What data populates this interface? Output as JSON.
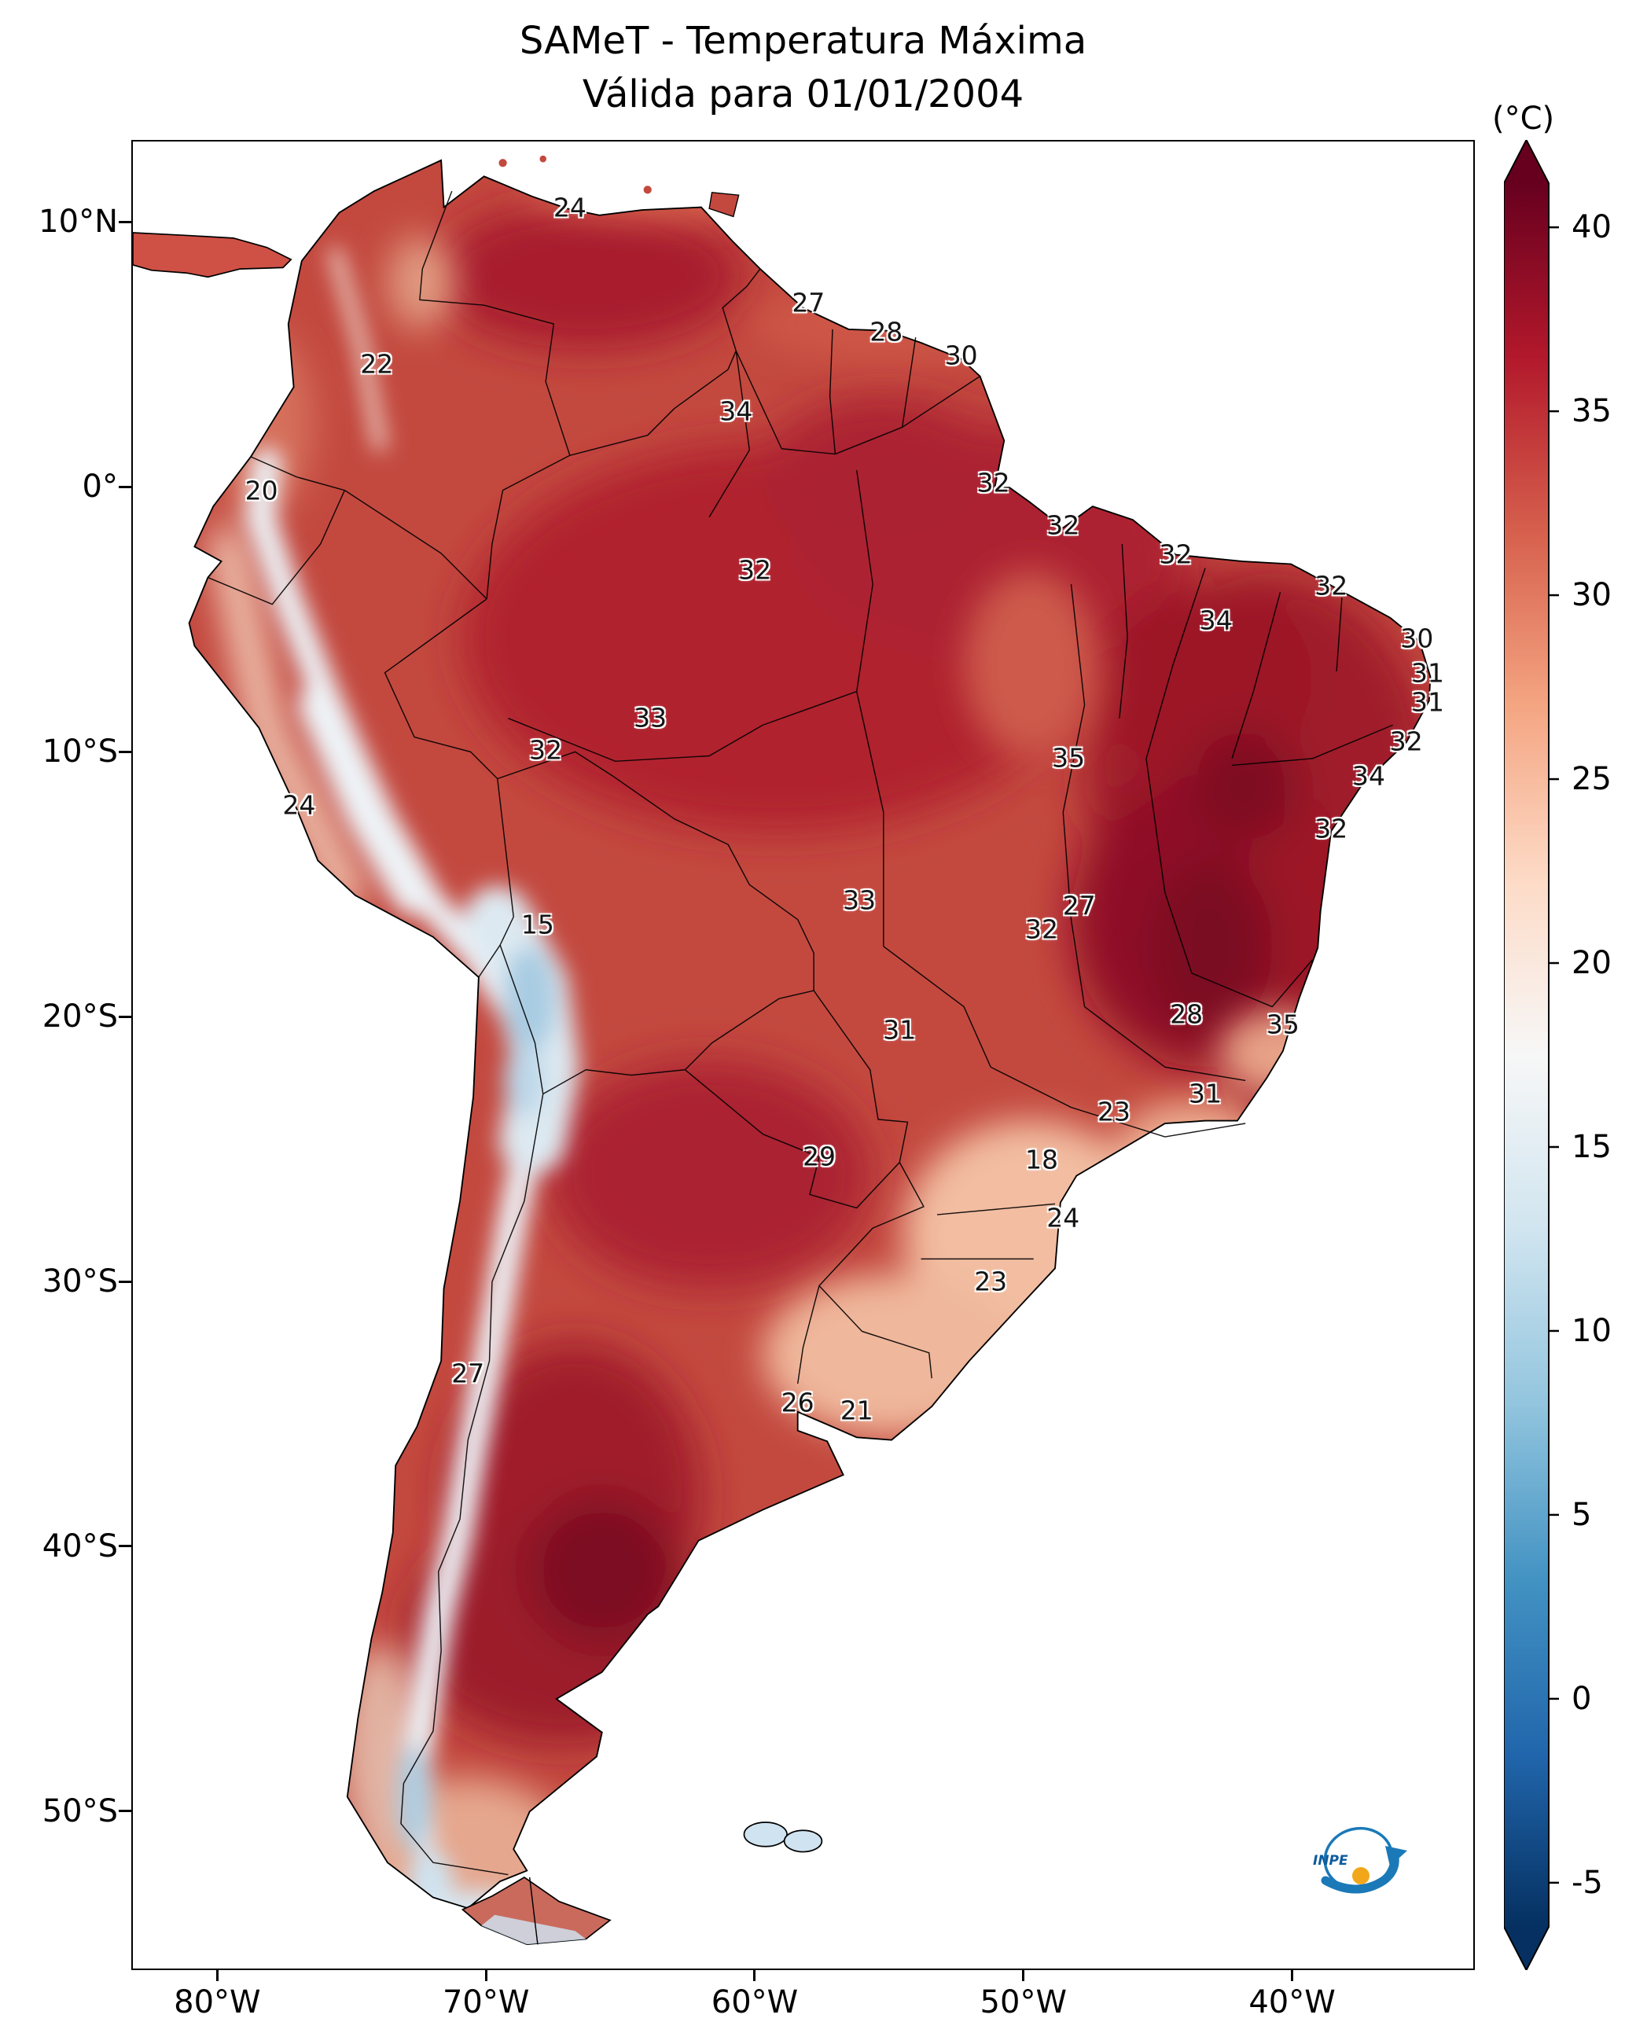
{
  "title": {
    "line1": "SAMeT - Temperatura Máxima",
    "line2": "Válida para 01/01/2004"
  },
  "colorbar": {
    "unit_label": "(°C)",
    "vmax": 41.2,
    "vmin": -6.2,
    "ticks": [
      40,
      35,
      30,
      25,
      20,
      15,
      10,
      5,
      0,
      -5
    ],
    "stops": [
      {
        "value": 41.2,
        "color": "#67001f"
      },
      {
        "value": 36.5,
        "color": "#b2182b"
      },
      {
        "value": 31.7,
        "color": "#d6604d"
      },
      {
        "value": 27.0,
        "color": "#f4a582"
      },
      {
        "value": 22.2,
        "color": "#fddbc7"
      },
      {
        "value": 17.5,
        "color": "#f7f7f7"
      },
      {
        "value": 12.8,
        "color": "#d1e5f0"
      },
      {
        "value": 8.0,
        "color": "#92c5de"
      },
      {
        "value": 3.3,
        "color": "#4393c3"
      },
      {
        "value": -1.5,
        "color": "#2166ac"
      },
      {
        "value": -6.2,
        "color": "#053061"
      }
    ]
  },
  "map": {
    "extent": {
      "lon_min": -83.2,
      "lon_max": -33.2,
      "lat_min": -56.0,
      "lat_max": 13.1
    },
    "lat_ticks": [
      {
        "label": "10°N",
        "value": 10
      },
      {
        "label": "0°",
        "value": 0
      },
      {
        "label": "10°S",
        "value": -10
      },
      {
        "label": "20°S",
        "value": -20
      },
      {
        "label": "30°S",
        "value": -30
      },
      {
        "label": "40°S",
        "value": -40
      },
      {
        "label": "50°S",
        "value": -50
      }
    ],
    "lon_ticks": [
      {
        "label": "80°W",
        "value": -80
      },
      {
        "label": "70°W",
        "value": -70
      },
      {
        "label": "60°W",
        "value": -60
      },
      {
        "label": "50°W",
        "value": -50
      },
      {
        "label": "40°W",
        "value": -40
      }
    ],
    "logo_text": "INPE"
  },
  "chart_data": {
    "type": "heatmap",
    "title": "SAMeT - Temperatura Máxima",
    "subtitle": "Válida para 01/01/2004",
    "units": "°C",
    "value_range": [
      -5,
      40
    ],
    "legend_position": "right",
    "stations": [
      {
        "lon": -66.9,
        "lat": 10.6,
        "value": 24
      },
      {
        "lon": -58.0,
        "lat": 7.0,
        "value": 27
      },
      {
        "lon": -55.1,
        "lat": 5.9,
        "value": 28
      },
      {
        "lon": -52.3,
        "lat": 5.0,
        "value": 30
      },
      {
        "lon": -74.1,
        "lat": 4.7,
        "value": 22
      },
      {
        "lon": -60.7,
        "lat": 2.9,
        "value": 34
      },
      {
        "lon": -78.4,
        "lat": -0.1,
        "value": 20
      },
      {
        "lon": -51.1,
        "lat": 0.2,
        "value": 32
      },
      {
        "lon": -48.5,
        "lat": -1.4,
        "value": 32
      },
      {
        "lon": -60.0,
        "lat": -3.1,
        "value": 32
      },
      {
        "lon": -44.3,
        "lat": -2.5,
        "value": 32
      },
      {
        "lon": -38.5,
        "lat": -3.7,
        "value": 32
      },
      {
        "lon": -42.8,
        "lat": -5.0,
        "value": 34
      },
      {
        "lon": -35.3,
        "lat": -5.7,
        "value": 30
      },
      {
        "lon": -34.9,
        "lat": -7.0,
        "value": 31
      },
      {
        "lon": -34.9,
        "lat": -8.1,
        "value": 31
      },
      {
        "lon": -63.9,
        "lat": -8.7,
        "value": 33
      },
      {
        "lon": -67.8,
        "lat": -9.9,
        "value": 32
      },
      {
        "lon": -35.7,
        "lat": -9.6,
        "value": 32
      },
      {
        "lon": -48.3,
        "lat": -10.2,
        "value": 35
      },
      {
        "lon": -37.1,
        "lat": -10.9,
        "value": 34
      },
      {
        "lon": -77.0,
        "lat": -12.0,
        "value": 24
      },
      {
        "lon": -38.5,
        "lat": -12.9,
        "value": 32
      },
      {
        "lon": -68.1,
        "lat": -16.5,
        "value": 15
      },
      {
        "lon": -56.1,
        "lat": -15.6,
        "value": 33
      },
      {
        "lon": -47.9,
        "lat": -15.8,
        "value": 27
      },
      {
        "lon": -49.3,
        "lat": -16.7,
        "value": 32
      },
      {
        "lon": -43.9,
        "lat": -19.9,
        "value": 28
      },
      {
        "lon": -40.3,
        "lat": -20.3,
        "value": 35
      },
      {
        "lon": -54.6,
        "lat": -20.5,
        "value": 31
      },
      {
        "lon": -46.6,
        "lat": -23.6,
        "value": 23
      },
      {
        "lon": -43.2,
        "lat": -22.9,
        "value": 31
      },
      {
        "lon": -57.6,
        "lat": -25.3,
        "value": 29
      },
      {
        "lon": -49.3,
        "lat": -25.4,
        "value": 18
      },
      {
        "lon": -48.5,
        "lat": -27.6,
        "value": 24
      },
      {
        "lon": -51.2,
        "lat": -30.0,
        "value": 23
      },
      {
        "lon": -70.7,
        "lat": -33.5,
        "value": 27
      },
      {
        "lon": -58.4,
        "lat": -34.6,
        "value": 26
      },
      {
        "lon": -56.2,
        "lat": -34.9,
        "value": 21
      }
    ]
  }
}
